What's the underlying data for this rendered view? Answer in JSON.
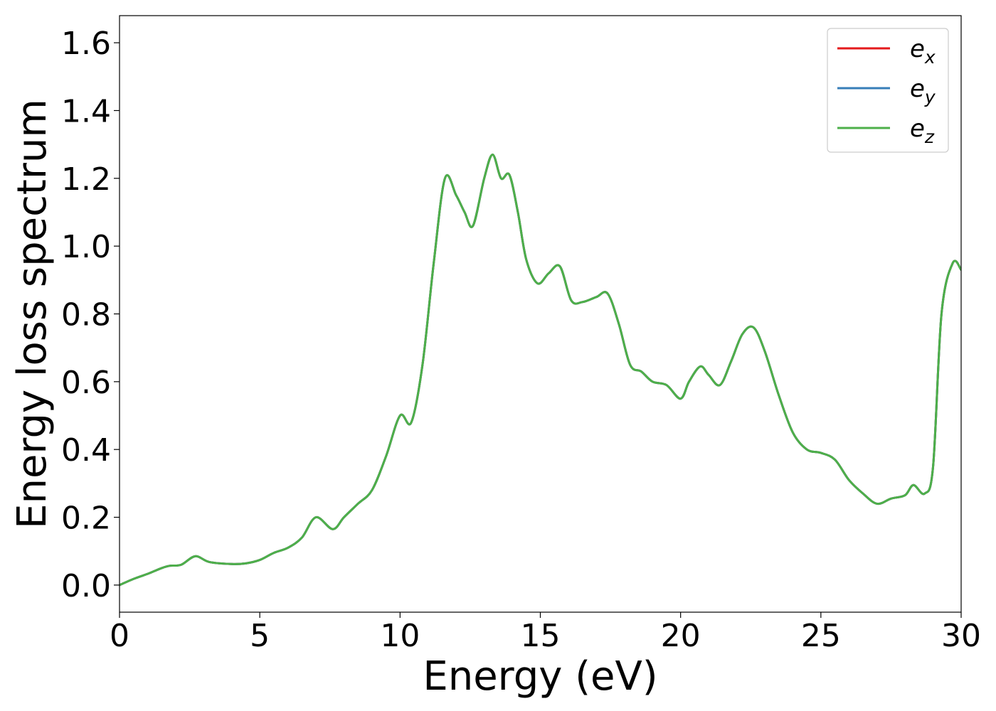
{
  "chart_data": {
    "type": "line",
    "xlabel": "Energy (eV)",
    "ylabel": "Energy loss spectrum",
    "xlim": [
      0,
      30
    ],
    "ylim": [
      -0.08,
      1.68
    ],
    "x_ticks": [
      {
        "value": 0,
        "label": "0"
      },
      {
        "value": 5,
        "label": "5"
      },
      {
        "value": 10,
        "label": "10"
      },
      {
        "value": 15,
        "label": "15"
      },
      {
        "value": 20,
        "label": "20"
      },
      {
        "value": 25,
        "label": "25"
      },
      {
        "value": 30,
        "label": "30"
      }
    ],
    "y_ticks": [
      {
        "value": 0.0,
        "label": "0.0"
      },
      {
        "value": 0.2,
        "label": "0.2"
      },
      {
        "value": 0.4,
        "label": "0.4"
      },
      {
        "value": 0.6,
        "label": "0.6"
      },
      {
        "value": 0.8,
        "label": "0.8"
      },
      {
        "value": 1.0,
        "label": "1.0"
      },
      {
        "value": 1.2,
        "label": "1.2"
      },
      {
        "value": 1.4,
        "label": "1.4"
      },
      {
        "value": 1.6,
        "label": "1.6"
      }
    ],
    "grid": false,
    "legend_position": "top-right",
    "x": [
      0,
      0.5,
      1.0,
      1.5,
      1.8,
      2.2,
      2.7,
      3.2,
      4.0,
      4.5,
      5.0,
      5.5,
      6.0,
      6.5,
      7.0,
      7.6,
      8.0,
      8.5,
      9.0,
      9.5,
      10.0,
      10.4,
      10.8,
      11.2,
      11.6,
      12.0,
      12.3,
      12.6,
      13.0,
      13.3,
      13.6,
      13.9,
      14.2,
      14.5,
      14.9,
      15.3,
      15.7,
      16.1,
      16.5,
      17.0,
      17.4,
      17.8,
      18.2,
      18.6,
      19.0,
      19.5,
      20.0,
      20.3,
      20.7,
      21.0,
      21.4,
      21.8,
      22.2,
      22.6,
      23.0,
      23.5,
      24.0,
      24.5,
      25.0,
      25.5,
      26.0,
      26.5,
      27.0,
      27.5,
      28.0,
      28.3,
      28.7,
      29.0,
      29.3,
      29.7,
      30.0
    ],
    "series": [
      {
        "name": "e_x",
        "color": "#e41a1c",
        "values": [
          0.0,
          0.018,
          0.033,
          0.05,
          0.057,
          0.06,
          0.085,
          0.068,
          0.062,
          0.064,
          0.074,
          0.095,
          0.11,
          0.14,
          0.2,
          0.165,
          0.2,
          0.24,
          0.28,
          0.38,
          0.5,
          0.48,
          0.65,
          0.95,
          1.2,
          1.15,
          1.1,
          1.06,
          1.2,
          1.27,
          1.2,
          1.21,
          1.1,
          0.96,
          0.89,
          0.92,
          0.94,
          0.84,
          0.835,
          0.85,
          0.86,
          0.77,
          0.65,
          0.63,
          0.6,
          0.59,
          0.55,
          0.6,
          0.645,
          0.62,
          0.59,
          0.66,
          0.74,
          0.76,
          0.69,
          0.56,
          0.45,
          0.4,
          0.39,
          0.37,
          0.31,
          0.27,
          0.24,
          0.255,
          0.265,
          0.295,
          0.27,
          0.35,
          0.8,
          0.95,
          0.93
        ]
      },
      {
        "name": "e_y",
        "color": "#377eb8",
        "values": [
          0.0,
          0.018,
          0.033,
          0.05,
          0.057,
          0.06,
          0.085,
          0.068,
          0.062,
          0.064,
          0.074,
          0.095,
          0.11,
          0.14,
          0.2,
          0.165,
          0.2,
          0.24,
          0.28,
          0.38,
          0.5,
          0.48,
          0.65,
          0.95,
          1.2,
          1.15,
          1.1,
          1.06,
          1.2,
          1.27,
          1.2,
          1.21,
          1.1,
          0.96,
          0.89,
          0.92,
          0.94,
          0.84,
          0.835,
          0.85,
          0.86,
          0.77,
          0.65,
          0.63,
          0.6,
          0.59,
          0.55,
          0.6,
          0.645,
          0.62,
          0.59,
          0.66,
          0.74,
          0.76,
          0.69,
          0.56,
          0.45,
          0.4,
          0.39,
          0.37,
          0.31,
          0.27,
          0.24,
          0.255,
          0.265,
          0.295,
          0.27,
          0.35,
          0.8,
          0.95,
          0.93
        ]
      },
      {
        "name": "e_z",
        "color": "#4daf4a",
        "values": [
          0.0,
          0.018,
          0.033,
          0.05,
          0.057,
          0.06,
          0.085,
          0.068,
          0.062,
          0.064,
          0.074,
          0.095,
          0.11,
          0.14,
          0.2,
          0.165,
          0.2,
          0.24,
          0.28,
          0.38,
          0.5,
          0.48,
          0.65,
          0.95,
          1.2,
          1.15,
          1.1,
          1.06,
          1.2,
          1.27,
          1.2,
          1.21,
          1.1,
          0.96,
          0.89,
          0.92,
          0.94,
          0.84,
          0.835,
          0.85,
          0.86,
          0.77,
          0.65,
          0.63,
          0.6,
          0.59,
          0.55,
          0.6,
          0.645,
          0.62,
          0.59,
          0.66,
          0.74,
          0.76,
          0.69,
          0.56,
          0.45,
          0.4,
          0.39,
          0.37,
          0.31,
          0.27,
          0.24,
          0.255,
          0.265,
          0.295,
          0.27,
          0.35,
          0.8,
          0.95,
          0.93
        ]
      }
    ],
    "legend": [
      {
        "base": "e",
        "sub": "x",
        "color": "#e41a1c"
      },
      {
        "base": "e",
        "sub": "y",
        "color": "#377eb8"
      },
      {
        "base": "e",
        "sub": "z",
        "color": "#4daf4a"
      }
    ]
  }
}
